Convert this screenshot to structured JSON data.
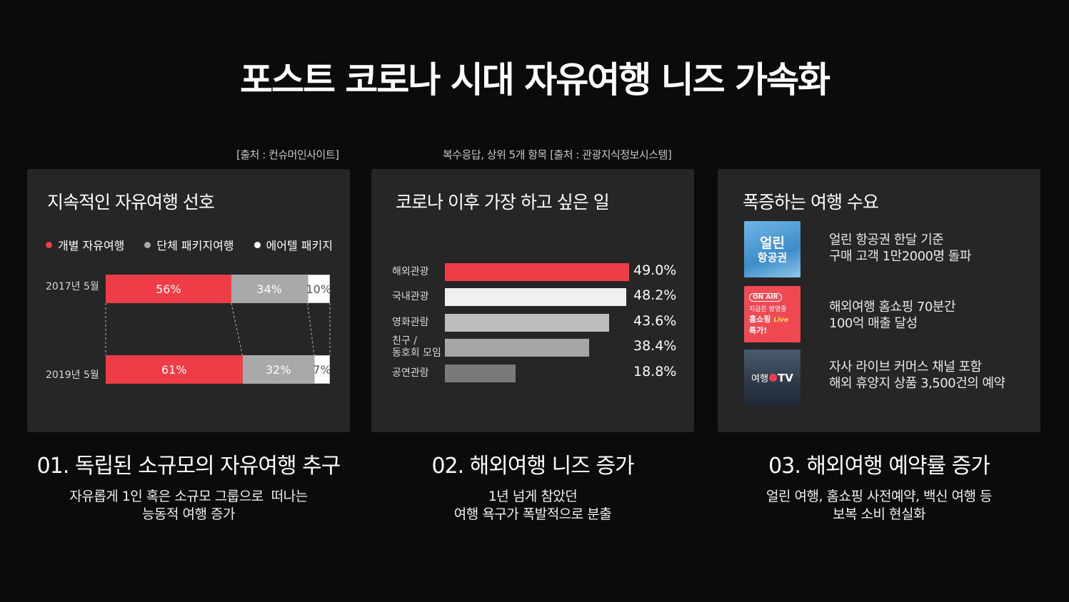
{
  "title": "포스트 코로나 시대 자유여행 니즈 가속화",
  "sources": [
    "[출처 : 컨슈머인사이트]",
    "복수응답, 상위 5개 항목 [출처 : 관광지식정보시스템]"
  ],
  "colors": {
    "red": "#ef3d47",
    "gray": "#a9a9a9",
    "white": "#ffffff",
    "light": "#f0f0f0",
    "mid": "#b4b4b4",
    "dark": "#7a7a7a"
  },
  "chart_data": [
    {
      "type": "bar",
      "stacked": true,
      "orientation": "horizontal",
      "title": "지속적인 자유여행 선호",
      "categories": [
        "2017년 5월",
        "2019년 5월"
      ],
      "series": [
        {
          "name": "개별 자유여행",
          "values": [
            56,
            61
          ],
          "labels": [
            "56%",
            "61%"
          ],
          "color": "#ef3d47"
        },
        {
          "name": "단체 패키지여행",
          "values": [
            34,
            32
          ],
          "labels": [
            "34%",
            "32%"
          ],
          "color": "#a9a9a9"
        },
        {
          "name": "에어텔 패키지",
          "values": [
            10,
            7
          ],
          "labels": [
            "10%",
            "7%"
          ],
          "color": "#ffffff"
        }
      ],
      "legend": "top"
    },
    {
      "type": "bar",
      "orientation": "horizontal",
      "title": "코로나 이후 가장 하고 싶은 일",
      "categories": [
        "해외관광",
        "국내관광",
        "영화관람",
        "친구 / 동호회 모임",
        "공연관람"
      ],
      "category_lines": [
        [
          "해외관광"
        ],
        [
          "국내관광"
        ],
        [
          "영화관람"
        ],
        [
          "친구 /",
          "동호회 모임"
        ],
        [
          "공연관람"
        ]
      ],
      "values": [
        49.0,
        48.2,
        43.6,
        38.4,
        18.8
      ],
      "labels": [
        "49.0%",
        "48.2%",
        "43.6%",
        "38.4%",
        "18.8%"
      ],
      "colors": [
        "#ef3d47",
        "#f0f0f0",
        "#bdbdbd",
        "#a6a6a6",
        "#7a7a7a"
      ]
    }
  ],
  "panel3": {
    "title": "폭증하는 여행 수요",
    "items": [
      {
        "thumb_lines": [
          "얼린",
          "항공권"
        ],
        "icon": "airplane-ticket-thumbnail",
        "lines": [
          "얼린 항공권 한달 기준",
          "구매 고객 1만2000명 돌파"
        ]
      },
      {
        "thumb_lines": [
          "ON AIR",
          "지금은 방영중",
          "홈쇼핑",
          "특가!"
        ],
        "thumb_accent": "Live",
        "icon": "home-shopping-thumbnail",
        "lines": [
          "해외여행 홈쇼핑 70분간",
          "100억 매출 달성"
        ]
      },
      {
        "thumb_lines": [
          "여행",
          "TV"
        ],
        "icon": "travel-tv-thumbnail",
        "lines": [
          "자사 라이브 커머스 채널 포함",
          "해외 휴양지 상품 3,500건의 예약"
        ]
      }
    ]
  },
  "sections": [
    {
      "heading": "01. 독립된 소규모의 자유여행 추구",
      "desc": [
        "자유롭게 1인 혹은 소규모 그룹으로  떠나는",
        "능동적 여행 증가"
      ]
    },
    {
      "heading": "02. 해외여행 니즈 증가",
      "desc": [
        "1년 넘게 참았던",
        "여행 욕구가 폭발적으로 분출"
      ]
    },
    {
      "heading": "03. 해외여행 예약률 증가",
      "desc": [
        "얼린 여행, 홈쇼핑 사전예약, 백신 여행 등",
        "보복 소비 현실화"
      ]
    }
  ]
}
